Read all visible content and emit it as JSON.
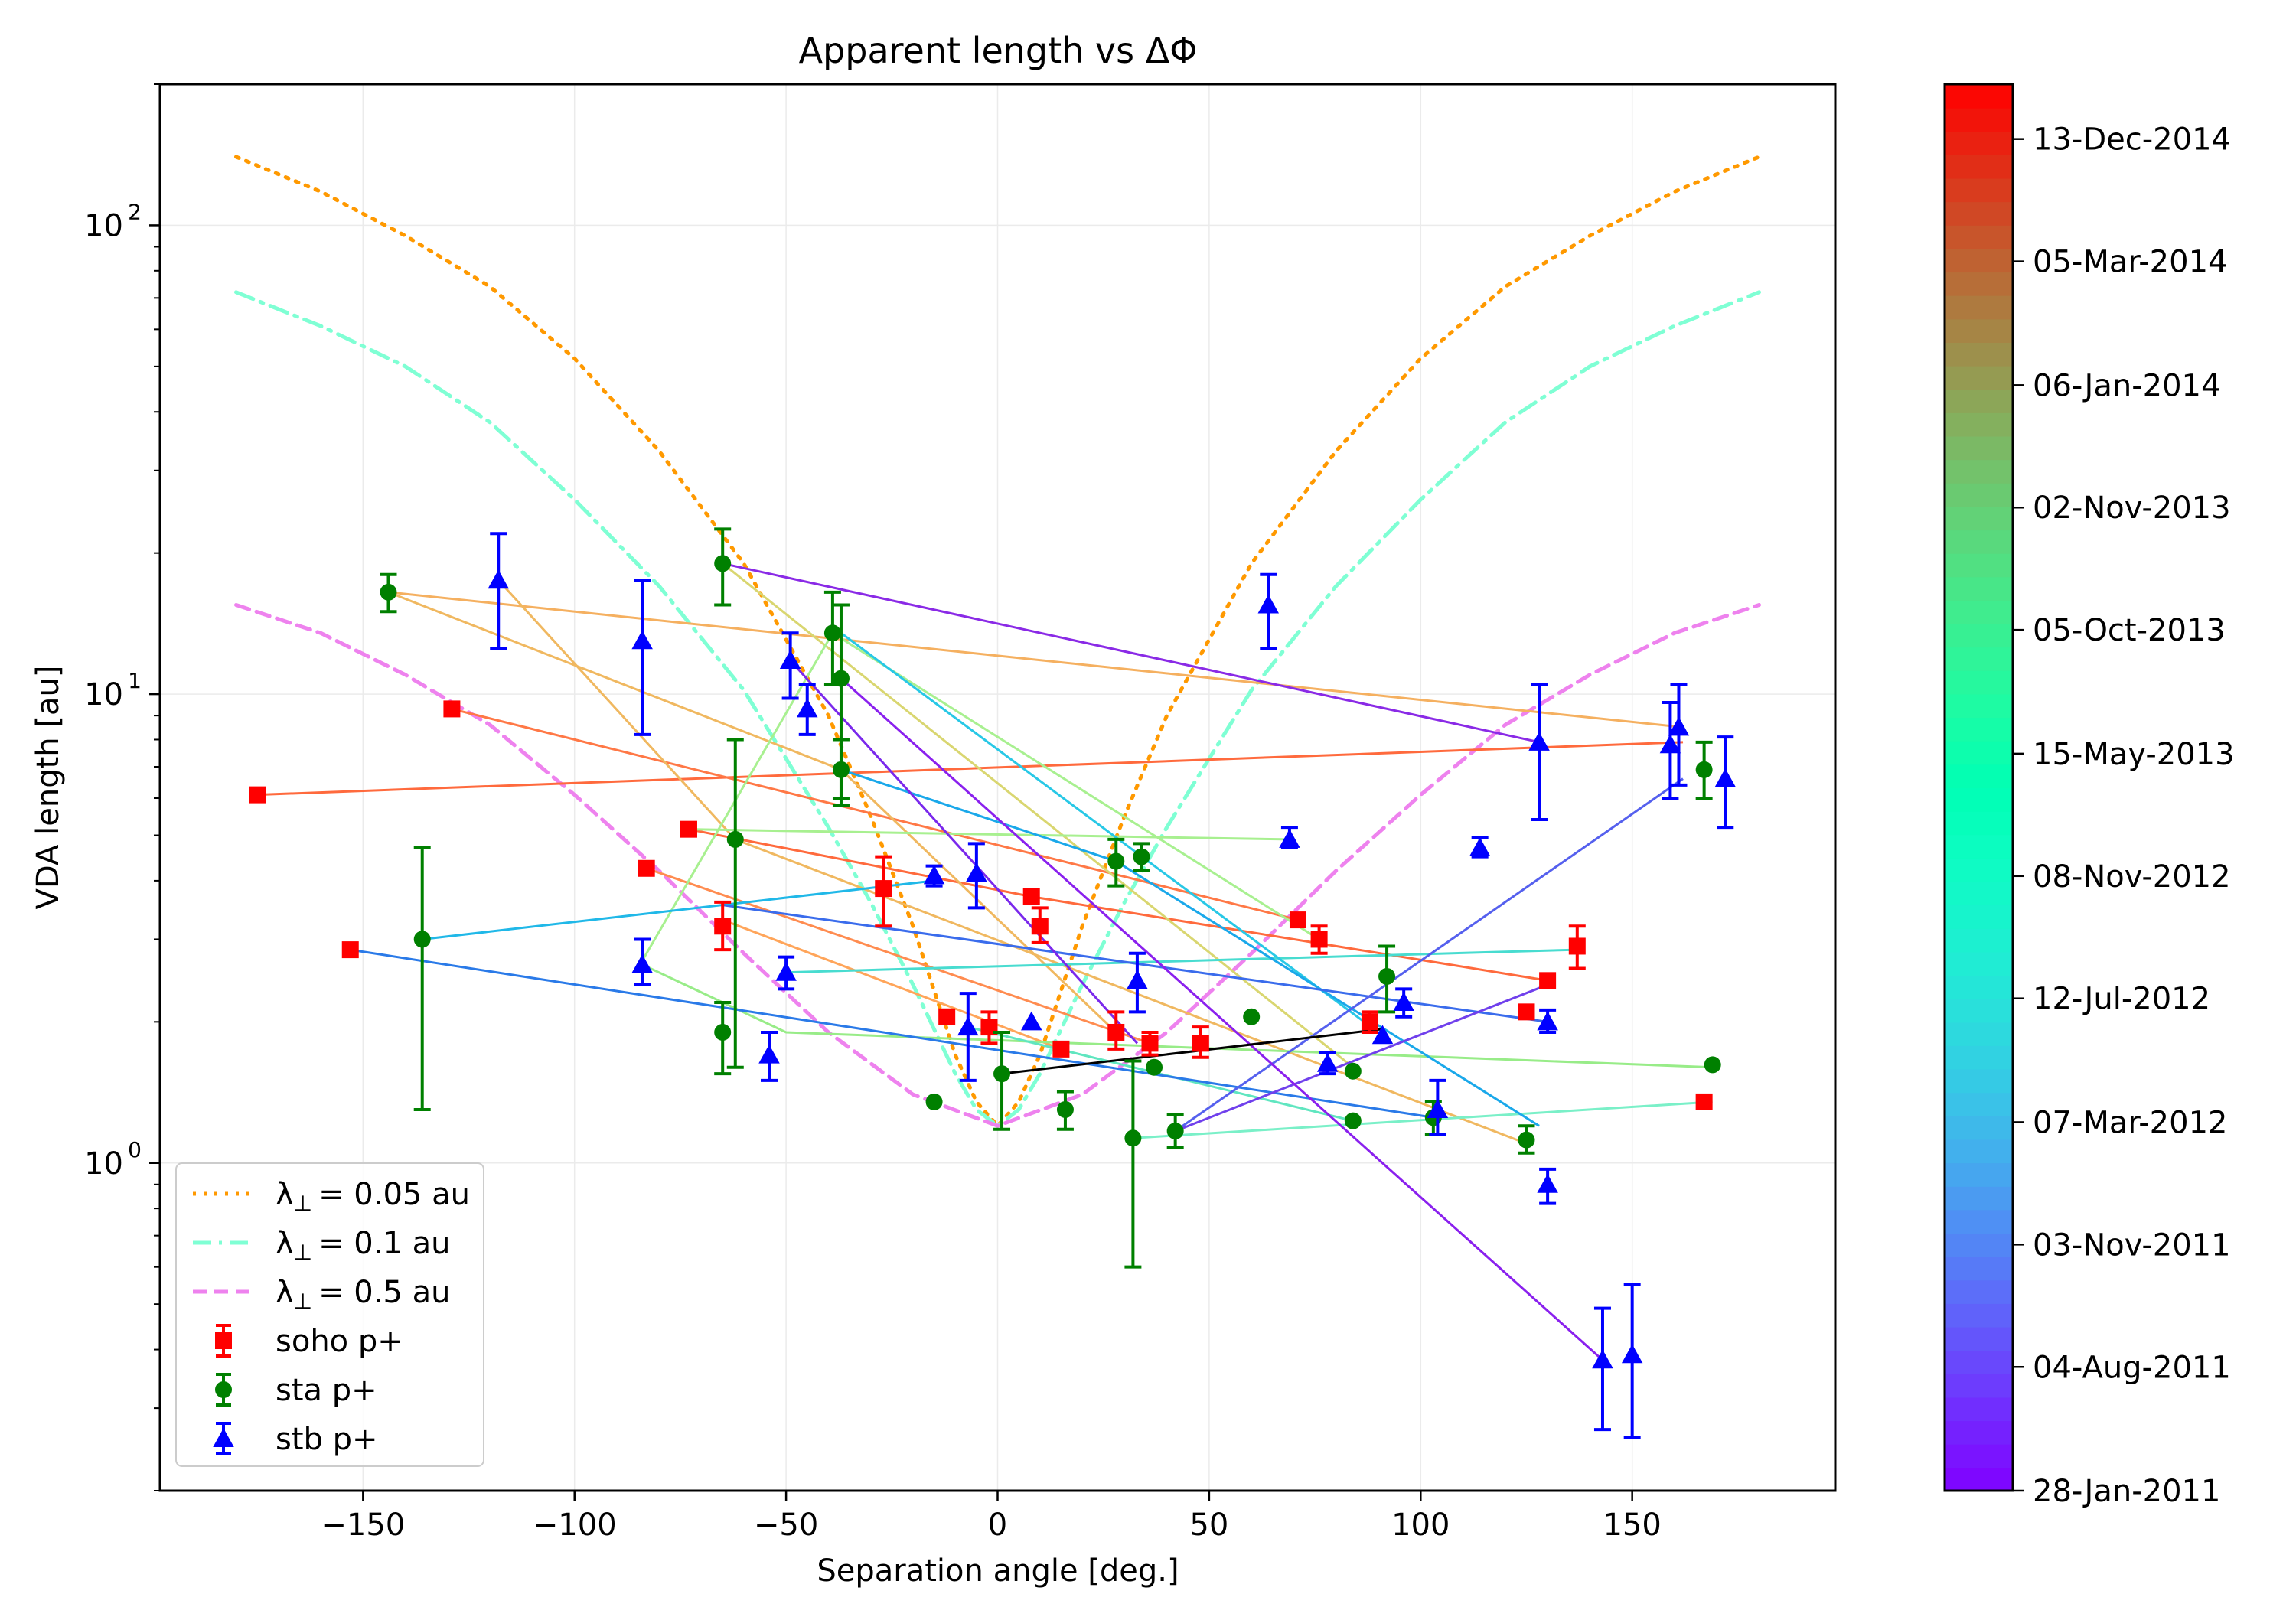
{
  "chart_data": {
    "type": "scatter",
    "title": "Apparent length vs ΔΦ",
    "xlabel": "Separation angle [deg.]",
    "ylabel": "VDA length [au]",
    "xlim": [
      -198,
      198
    ],
    "ylim": [
      0.2,
      200
    ],
    "yscale": "log",
    "grid": true,
    "legend_position": "lower-left",
    "x_ticks": [
      -150,
      -100,
      -50,
      0,
      50,
      100,
      150
    ],
    "x_tick_labels": [
      "−150",
      "−100",
      "−50",
      "0",
      "50",
      "100",
      "150"
    ],
    "y_ticks": [
      1,
      10,
      100
    ],
    "y_tick_labels": [
      "10",
      "10",
      "10"
    ],
    "y_tick_exponents": [
      "0",
      "1",
      "2"
    ],
    "curves": [
      {
        "name": "λ⊥ = 0.05 au",
        "label_lambda": "λ",
        "label_sub": "⊥",
        "label_rest": "= 0.05 au",
        "style": "dotted",
        "color": "#ff9900",
        "x": [
          -180,
          -160,
          -140,
          -120,
          -100,
          -80,
          -60,
          -40,
          -30,
          -20,
          -10,
          -5,
          0,
          5,
          10,
          20,
          30,
          40,
          60,
          80,
          100,
          120,
          140,
          160,
          180
        ],
        "y": [
          140,
          118,
          95,
          74,
          52,
          33,
          19,
          9.0,
          5.5,
          3.2,
          1.7,
          1.35,
          1.2,
          1.35,
          1.7,
          3.2,
          5.5,
          9.0,
          19,
          33,
          52,
          74,
          95,
          118,
          140
        ]
      },
      {
        "name": "λ⊥ = 0.1 au",
        "label_lambda": "λ",
        "label_sub": "⊥",
        "label_rest": "= 0.1 au",
        "style": "dashdot",
        "color": "#7fffd4",
        "x": [
          -180,
          -160,
          -140,
          -120,
          -100,
          -80,
          -60,
          -40,
          -30,
          -20,
          -10,
          -5,
          0,
          5,
          10,
          20,
          30,
          40,
          60,
          80,
          100,
          120,
          140,
          160,
          180
        ],
        "y": [
          72,
          61,
          50,
          38,
          26,
          17,
          10.2,
          5.2,
          3.6,
          2.4,
          1.55,
          1.3,
          1.2,
          1.3,
          1.55,
          2.4,
          3.6,
          5.2,
          10.2,
          17,
          26,
          38,
          50,
          61,
          72
        ]
      },
      {
        "name": "λ⊥ = 0.5 au",
        "label_lambda": "λ",
        "label_sub": "⊥",
        "label_rest": "= 0.5 au",
        "style": "dashed",
        "color": "#ee82ee",
        "x": [
          -180,
          -160,
          -140,
          -120,
          -100,
          -80,
          -60,
          -40,
          -20,
          0,
          20,
          40,
          60,
          80,
          100,
          120,
          140,
          160,
          180
        ],
        "y": [
          15.5,
          13.5,
          11.0,
          8.6,
          6.1,
          4.2,
          2.8,
          1.9,
          1.4,
          1.2,
          1.4,
          1.9,
          2.8,
          4.2,
          6.1,
          8.6,
          11.0,
          13.5,
          15.5
        ]
      }
    ],
    "series": [
      {
        "name": "soho p+",
        "marker": "square",
        "color": "#ff0000",
        "points": [
          {
            "x": -175,
            "y": 6.1
          },
          {
            "x": -153,
            "y": 2.85
          },
          {
            "x": -129,
            "y": 9.3
          },
          {
            "x": -83,
            "y": 4.25
          },
          {
            "x": -73,
            "y": 5.15
          },
          {
            "x": -65,
            "y": 3.2,
            "err": [
              2.85,
              3.6
            ]
          },
          {
            "x": -27,
            "y": 3.85,
            "err": [
              3.2,
              4.5
            ]
          },
          {
            "x": -12,
            "y": 2.05
          },
          {
            "x": -2,
            "y": 1.95,
            "err": [
              1.8,
              2.1
            ]
          },
          {
            "x": 8,
            "y": 3.7
          },
          {
            "x": 10,
            "y": 3.2,
            "err": [
              2.95,
              3.5
            ]
          },
          {
            "x": 15,
            "y": 1.75
          },
          {
            "x": 28,
            "y": 1.9,
            "err": [
              1.75,
              2.1
            ]
          },
          {
            "x": 36,
            "y": 1.8,
            "err": [
              1.7,
              1.9
            ]
          },
          {
            "x": 48,
            "y": 1.8,
            "err": [
              1.68,
              1.95
            ]
          },
          {
            "x": 71,
            "y": 3.3
          },
          {
            "x": 76,
            "y": 3.0,
            "err": [
              2.8,
              3.2
            ]
          },
          {
            "x": 88,
            "y": 2.0,
            "err": [
              1.9,
              2.1
            ]
          },
          {
            "x": 125,
            "y": 2.1
          },
          {
            "x": 130,
            "y": 2.45
          },
          {
            "x": 137,
            "y": 2.9,
            "err": [
              2.6,
              3.2
            ]
          },
          {
            "x": 167,
            "y": 1.35
          }
        ]
      },
      {
        "name": "sta p+",
        "marker": "circle",
        "color": "#008000",
        "points": [
          {
            "x": -144,
            "y": 16.5,
            "err": [
              15,
              18
            ]
          },
          {
            "x": -136,
            "y": 3.0,
            "err": [
              1.3,
              4.7
            ]
          },
          {
            "x": -65,
            "y": 19,
            "err": [
              15.5,
              22.5
            ]
          },
          {
            "x": -65,
            "y": 1.9,
            "err": [
              1.55,
              2.2
            ]
          },
          {
            "x": -62,
            "y": 4.9,
            "err": [
              1.6,
              8.0
            ]
          },
          {
            "x": -39,
            "y": 13.5,
            "err": [
              10.5,
              16.5
            ]
          },
          {
            "x": -37,
            "y": 10.8,
            "err": [
              6.0,
              15.5
            ]
          },
          {
            "x": -37,
            "y": 6.9,
            "err": [
              5.8,
              8.0
            ]
          },
          {
            "x": -15,
            "y": 1.35
          },
          {
            "x": 1,
            "y": 1.55,
            "err": [
              1.18,
              1.9
            ]
          },
          {
            "x": 16,
            "y": 1.3,
            "err": [
              1.18,
              1.42
            ]
          },
          {
            "x": 28,
            "y": 4.4,
            "err": [
              3.9,
              4.9
            ]
          },
          {
            "x": 32,
            "y": 1.13,
            "err": [
              0.6,
              1.65
            ]
          },
          {
            "x": 34,
            "y": 4.5,
            "err": [
              4.2,
              4.8
            ]
          },
          {
            "x": 37,
            "y": 1.6
          },
          {
            "x": 42,
            "y": 1.17,
            "err": [
              1.08,
              1.27
            ]
          },
          {
            "x": 60,
            "y": 2.05
          },
          {
            "x": 84,
            "y": 1.57
          },
          {
            "x": 84,
            "y": 1.23
          },
          {
            "x": 92,
            "y": 2.5,
            "err": [
              2.1,
              2.9
            ]
          },
          {
            "x": 103,
            "y": 1.25,
            "err": [
              1.15,
              1.35
            ]
          },
          {
            "x": 125,
            "y": 1.12,
            "err": [
              1.05,
              1.2
            ]
          },
          {
            "x": 167,
            "y": 6.9,
            "err": [
              6.0,
              7.9
            ]
          },
          {
            "x": 169,
            "y": 1.62
          }
        ]
      },
      {
        "name": "stb p+",
        "marker": "triangle",
        "color": "#0000ff",
        "points": [
          {
            "x": -118,
            "y": 17.5,
            "err": [
              12.5,
              22
            ]
          },
          {
            "x": -84,
            "y": 2.65,
            "err": [
              2.4,
              3.0
            ]
          },
          {
            "x": -84,
            "y": 13,
            "err": [
              8.2,
              17.5
            ]
          },
          {
            "x": -54,
            "y": 1.7,
            "err": [
              1.5,
              1.9
            ]
          },
          {
            "x": -50,
            "y": 2.55,
            "err": [
              2.35,
              2.75
            ]
          },
          {
            "x": -49,
            "y": 11.8,
            "err": [
              9.8,
              13.5
            ]
          },
          {
            "x": -45,
            "y": 9.3,
            "err": [
              8.2,
              10.5
            ]
          },
          {
            "x": -15,
            "y": 4.1,
            "err": [
              3.9,
              4.3
            ]
          },
          {
            "x": -7,
            "y": 1.95,
            "err": [
              1.5,
              2.3
            ]
          },
          {
            "x": -5,
            "y": 4.15,
            "err": [
              3.5,
              4.8
            ]
          },
          {
            "x": 8,
            "y": 2.0
          },
          {
            "x": 33,
            "y": 2.45,
            "err": [
              2.1,
              2.8
            ]
          },
          {
            "x": 64,
            "y": 15.5,
            "err": [
              12.5,
              18
            ]
          },
          {
            "x": 69,
            "y": 4.9,
            "err": [
              4.7,
              5.2
            ]
          },
          {
            "x": 78,
            "y": 1.63,
            "err": [
              1.55,
              1.72
            ]
          },
          {
            "x": 91,
            "y": 1.87
          },
          {
            "x": 96,
            "y": 2.2,
            "err": [
              2.05,
              2.35
            ]
          },
          {
            "x": 104,
            "y": 1.3,
            "err": [
              1.15,
              1.5
            ]
          },
          {
            "x": 114,
            "y": 4.7,
            "err": [
              4.5,
              4.95
            ]
          },
          {
            "x": 128,
            "y": 7.9,
            "err": [
              5.4,
              10.5
            ]
          },
          {
            "x": 130,
            "y": 0.9,
            "err": [
              0.82,
              0.97
            ]
          },
          {
            "x": 130,
            "y": 2.0,
            "err": [
              1.9,
              2.12
            ]
          },
          {
            "x": 143,
            "y": 0.38,
            "err": [
              0.27,
              0.49
            ]
          },
          {
            "x": 150,
            "y": 0.39,
            "err": [
              0.26,
              0.55
            ]
          },
          {
            "x": 159,
            "y": 7.8,
            "err": [
              6.0,
              9.6
            ]
          },
          {
            "x": 161,
            "y": 8.5,
            "err": [
              6.4,
              10.5
            ]
          },
          {
            "x": 172,
            "y": 6.6,
            "err": [
              5.2,
              8.1
            ]
          }
        ]
      }
    ],
    "connecting_lines": [
      {
        "color": "#ff6a3d",
        "x": [
          -175,
          162
        ],
        "y": [
          6.1,
          7.9
        ]
      },
      {
        "color": "#ff7846",
        "x": [
          -129,
          71
        ],
        "y": [
          9.3,
          3.3
        ]
      },
      {
        "color": "#ff6a3d",
        "x": [
          -73,
          8,
          130
        ],
        "y": [
          5.15,
          3.7,
          2.45
        ]
      },
      {
        "color": "#ff8c50",
        "x": [
          -83,
          36
        ],
        "y": [
          4.25,
          1.8
        ]
      },
      {
        "color": "#ffa55a",
        "x": [
          -65,
          15
        ],
        "y": [
          3.3,
          1.75
        ]
      },
      {
        "color": "#f5b060",
        "x": [
          -144,
          162
        ],
        "y": [
          16.5,
          8.5
        ]
      },
      {
        "color": "#f0b860",
        "x": [
          -144,
          -37,
          28
        ],
        "y": [
          16.5,
          6.9,
          1.9
        ]
      },
      {
        "color": "#f0b860",
        "x": [
          -118,
          -62,
          125
        ],
        "y": [
          17.5,
          4.9,
          1.1
        ]
      },
      {
        "color": "#d9d670",
        "x": [
          -65,
          84
        ],
        "y": [
          19,
          1.6
        ]
      },
      {
        "color": "#a8f090",
        "x": [
          -73,
          69
        ],
        "y": [
          5.15,
          4.9
        ]
      },
      {
        "color": "#a8f090",
        "x": [
          -84,
          -39,
          76
        ],
        "y": [
          2.7,
          13.5,
          3.0
        ]
      },
      {
        "color": "#98ec88",
        "x": [
          -84,
          -50,
          169
        ],
        "y": [
          2.65,
          1.9,
          1.6
        ]
      },
      {
        "color": "#7af0c8",
        "x": [
          32,
          169
        ],
        "y": [
          1.13,
          1.35
        ]
      },
      {
        "color": "#60e6c0",
        "x": [
          -7,
          84
        ],
        "y": [
          1.95,
          1.23
        ]
      },
      {
        "color": "#48dcd0",
        "x": [
          -50,
          137
        ],
        "y": [
          2.55,
          2.85
        ]
      },
      {
        "color": "#28c8e6",
        "x": [
          -37,
          91
        ],
        "y": [
          13.5,
          1.87
        ]
      },
      {
        "color": "#20b8e8",
        "x": [
          -136,
          -15
        ],
        "y": [
          3.0,
          4.0
        ]
      },
      {
        "color": "#1aa8ea",
        "x": [
          -37,
          28,
          128
        ],
        "y": [
          6.9,
          4.4,
          1.2
        ]
      },
      {
        "color": "#2a7ae8",
        "x": [
          -153,
          103
        ],
        "y": [
          2.85,
          1.25
        ]
      },
      {
        "color": "#3a6cec",
        "x": [
          -65,
          130
        ],
        "y": [
          3.55,
          2.0
        ]
      },
      {
        "color": "#5560ee",
        "x": [
          42,
          162
        ],
        "y": [
          1.17,
          6.6
        ]
      },
      {
        "color": "#7040ec",
        "x": [
          42,
          130
        ],
        "y": [
          1.17,
          2.4
        ]
      },
      {
        "color": "#8a2ae6",
        "x": [
          -65,
          128
        ],
        "y": [
          19,
          7.9
        ]
      },
      {
        "color": "#7a28ec",
        "x": [
          -49,
          33
        ],
        "y": [
          11.8,
          1.8
        ]
      },
      {
        "color": "#8a20ee",
        "x": [
          -37,
          143
        ],
        "y": [
          10.8,
          0.38
        ]
      },
      {
        "color": "#000000",
        "x": [
          1,
          91
        ],
        "y": [
          1.55,
          1.93
        ]
      }
    ],
    "colorbar": {
      "label_positions_note": "fractions from bottom",
      "tick_labels": [
        "28-Jan-2011",
        "04-Aug-2011",
        "03-Nov-2011",
        "07-Mar-2012",
        "12-Jul-2012",
        "08-Nov-2012",
        "15-May-2013",
        "05-Oct-2013",
        "02-Nov-2013",
        "06-Jan-2014",
        "05-Mar-2014",
        "13-Dec-2014"
      ],
      "tick_fractions": [
        0.0,
        0.088,
        0.175,
        0.262,
        0.35,
        0.437,
        0.524,
        0.612,
        0.699,
        0.786,
        0.874,
        0.961
      ],
      "colormap": "rainbow"
    }
  }
}
